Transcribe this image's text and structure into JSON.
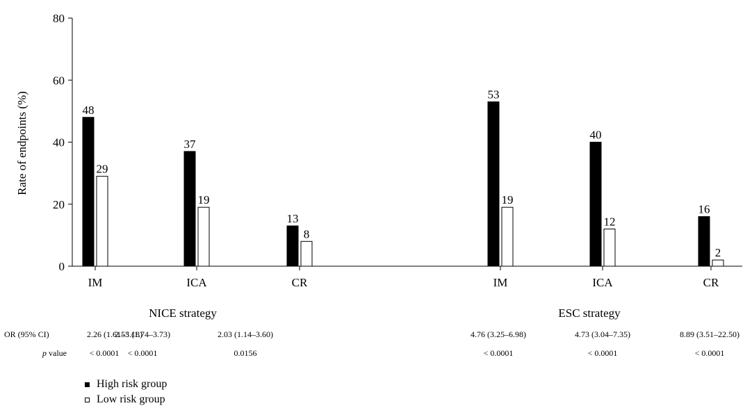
{
  "chart_data": {
    "type": "bar",
    "ylabel": "Rate of endpoints (%)",
    "ylim": [
      0,
      80
    ],
    "yticks": [
      0,
      20,
      40,
      60,
      80
    ],
    "grid": false,
    "groups": [
      {
        "title": "NICE strategy",
        "categories": [
          "IM",
          "ICA",
          "CR"
        ],
        "series": [
          {
            "name": "High risk group",
            "values": [
              48,
              37,
              13
            ],
            "color": "#000000"
          },
          {
            "name": "Low risk group",
            "values": [
              29,
              19,
              8
            ],
            "color": "#ffffff"
          }
        ],
        "or_ci": [
          "2.26 (1.61–3.18)",
          "2.55 (1.74–3.73)",
          "2.03 (1.14–3.60)"
        ],
        "p_value": [
          "< 0.0001",
          "< 0.0001",
          "0.0156"
        ]
      },
      {
        "title": "ESC strategy",
        "categories": [
          "IM",
          "ICA",
          "CR"
        ],
        "series": [
          {
            "name": "High risk group",
            "values": [
              53,
              40,
              16
            ],
            "color": "#000000"
          },
          {
            "name": "Low risk group",
            "values": [
              19,
              12,
              2
            ],
            "color": "#ffffff"
          }
        ],
        "or_ci": [
          "4.76 (3.25–6.98)",
          "4.73 (3.04–7.35)",
          "8.89 (3.51–22.50)"
        ],
        "p_value": [
          "< 0.0001",
          "< 0.0001",
          "< 0.0001"
        ]
      }
    ],
    "row_labels": {
      "or_ci": "OR (95% CI)",
      "p_value_italic": "p",
      "p_value_rest": " value"
    },
    "legend": {
      "position": "bottom-left",
      "items": [
        {
          "label": "High risk group",
          "style": "filled"
        },
        {
          "label": "Low risk group",
          "style": "open"
        }
      ]
    }
  }
}
